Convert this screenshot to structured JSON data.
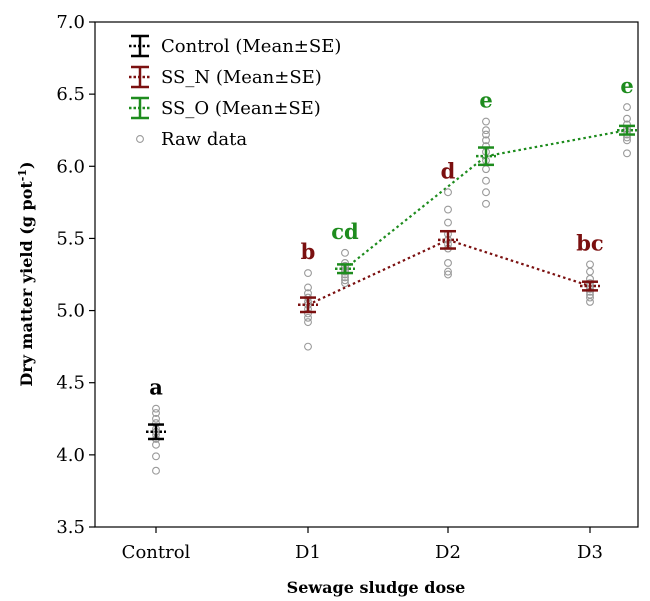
{
  "chart_data": {
    "type": "scatter",
    "xlabel": "Sewage sludge dose",
    "ylabel": "Dry matter yield  (g pot",
    "ylabel_sup": "-1",
    "ylabel_tail": ")",
    "ylim": [
      3.5,
      7.0
    ],
    "y_ticks": [
      "3.5",
      "4.0",
      "4.5",
      "5.0",
      "5.5",
      "6.0",
      "6.5",
      "7.0"
    ],
    "categories": [
      "Control",
      "D1",
      "D2",
      "D3"
    ],
    "colors": {
      "control": "#000000",
      "ss_n": "#7b1010",
      "ss_o": "#1e8c1e",
      "raw": "#9a9a9a"
    },
    "series": [
      {
        "key": "control",
        "name": "Control (Mean±SE)",
        "points": [
          {
            "category": "Control",
            "mean": 4.16,
            "se": 0.05,
            "letter": "a"
          }
        ]
      },
      {
        "key": "ss_n",
        "name": "SS_N (Mean±SE)",
        "connected": true,
        "points": [
          {
            "category": "D1",
            "mean": 5.04,
            "se": 0.05,
            "letter": "b"
          },
          {
            "category": "D2",
            "mean": 5.49,
            "se": 0.06,
            "letter": "d"
          },
          {
            "category": "D3",
            "mean": 5.17,
            "se": 0.03,
            "letter": "bc"
          }
        ]
      },
      {
        "key": "ss_o",
        "name": "SS_O (Mean±SE)",
        "connected": true,
        "points": [
          {
            "category": "D1",
            "mean": 5.29,
            "se": 0.03,
            "letter": "cd"
          },
          {
            "category": "D2",
            "mean": 6.07,
            "se": 0.06,
            "letter": "e"
          },
          {
            "category": "D3",
            "mean": 6.25,
            "se": 0.03,
            "letter": "e"
          }
        ]
      }
    ],
    "raw_data_label": "Raw data",
    "raw_data": [
      {
        "group": "control",
        "category": "Control",
        "values": [
          4.32,
          4.29,
          4.25,
          4.22,
          4.18,
          4.16,
          4.14,
          4.11,
          4.07,
          3.99,
          3.89
        ]
      },
      {
        "group": "ss_n",
        "category": "D1",
        "values": [
          5.26,
          5.16,
          5.12,
          5.09,
          5.06,
          5.04,
          5.01,
          4.98,
          4.95,
          4.92,
          4.75
        ]
      },
      {
        "group": "ss_o",
        "category": "D1",
        "values": [
          5.4,
          5.33,
          5.31,
          5.3,
          5.28,
          5.27,
          5.25,
          5.23,
          5.21,
          5.19
        ]
      },
      {
        "group": "ss_n",
        "category": "D2",
        "values": [
          5.82,
          5.7,
          5.61,
          5.53,
          5.49,
          5.46,
          5.43,
          5.33,
          5.27,
          5.25
        ]
      },
      {
        "group": "ss_o",
        "category": "D2",
        "values": [
          6.31,
          6.25,
          6.22,
          6.18,
          6.14,
          6.1,
          6.04,
          5.98,
          5.9,
          5.82,
          5.74
        ]
      },
      {
        "group": "ss_n",
        "category": "D3",
        "values": [
          5.32,
          5.27,
          5.22,
          5.19,
          5.17,
          5.15,
          5.13,
          5.11,
          5.09,
          5.06
        ]
      },
      {
        "group": "ss_o",
        "category": "D3",
        "values": [
          6.41,
          6.33,
          6.29,
          6.26,
          6.24,
          6.22,
          6.2,
          6.18,
          6.09
        ]
      }
    ],
    "legend_position": "top-left",
    "grid": false
  }
}
